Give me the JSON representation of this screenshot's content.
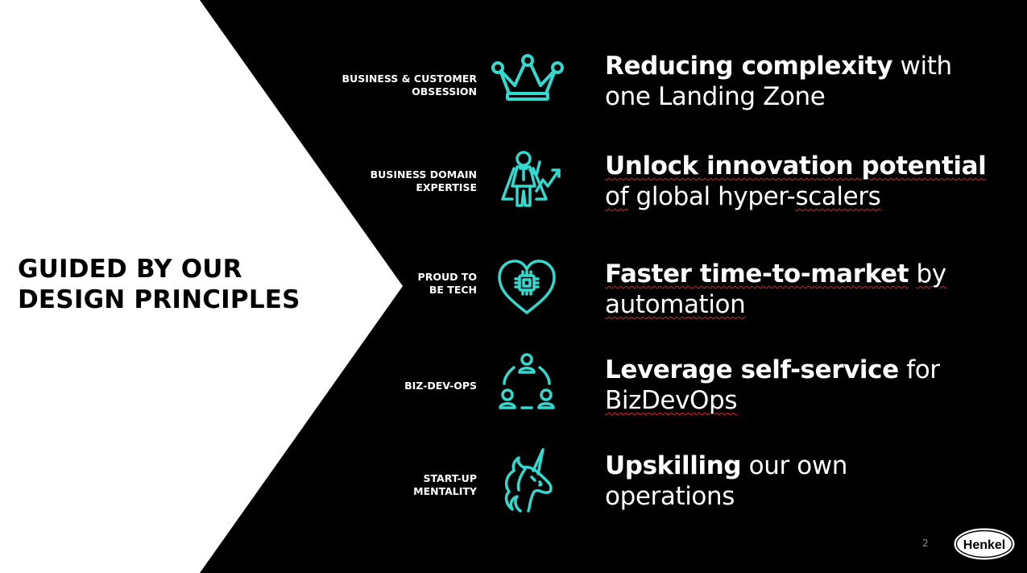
{
  "slide": {
    "title_line1": "GUIDED BY OUR",
    "title_line2": "DESIGN PRINCIPLES",
    "page_number": "2",
    "logo_text": "Henkel",
    "colors": {
      "background": "#000000",
      "panel": "#ffffff",
      "accent": "#34d8cf",
      "spellcheck": "#e02424"
    }
  },
  "principles": [
    {
      "label_line1": "BUSINESS & CUSTOMER",
      "label_line2": "OBSESSION",
      "icon": "crown-icon",
      "bold": "Reducing complexity",
      "rest": " with",
      "line2": "one Landing Zone"
    },
    {
      "label_line1": "BUSINESS DOMAIN",
      "label_line2": "EXPERTISE",
      "icon": "superhero-growth-icon",
      "bold": "Unlock innovation potential",
      "rest": "",
      "line2_a": "of",
      "line2_b": " global hyper-",
      "line2_c": "scalers"
    },
    {
      "label_line1": "PROUD TO",
      "label_line2": "BE TECH",
      "icon": "heart-chip-icon",
      "bold_a": "Faster",
      "bold_b": " time-to-market",
      "rest_a": " ",
      "rest_b": "by",
      "line2": "automation"
    },
    {
      "label_line1": "BIZ-DEV-OPS",
      "label_line2": "",
      "icon": "team-cycle-icon",
      "bold": "Leverage self-service",
      "rest": " for",
      "line2": "BizDevOps"
    },
    {
      "label_line1": "START-UP",
      "label_line2": "MENTALITY",
      "icon": "unicorn-icon",
      "bold": "Upskilling",
      "rest": " our own",
      "line2": "operations"
    }
  ]
}
